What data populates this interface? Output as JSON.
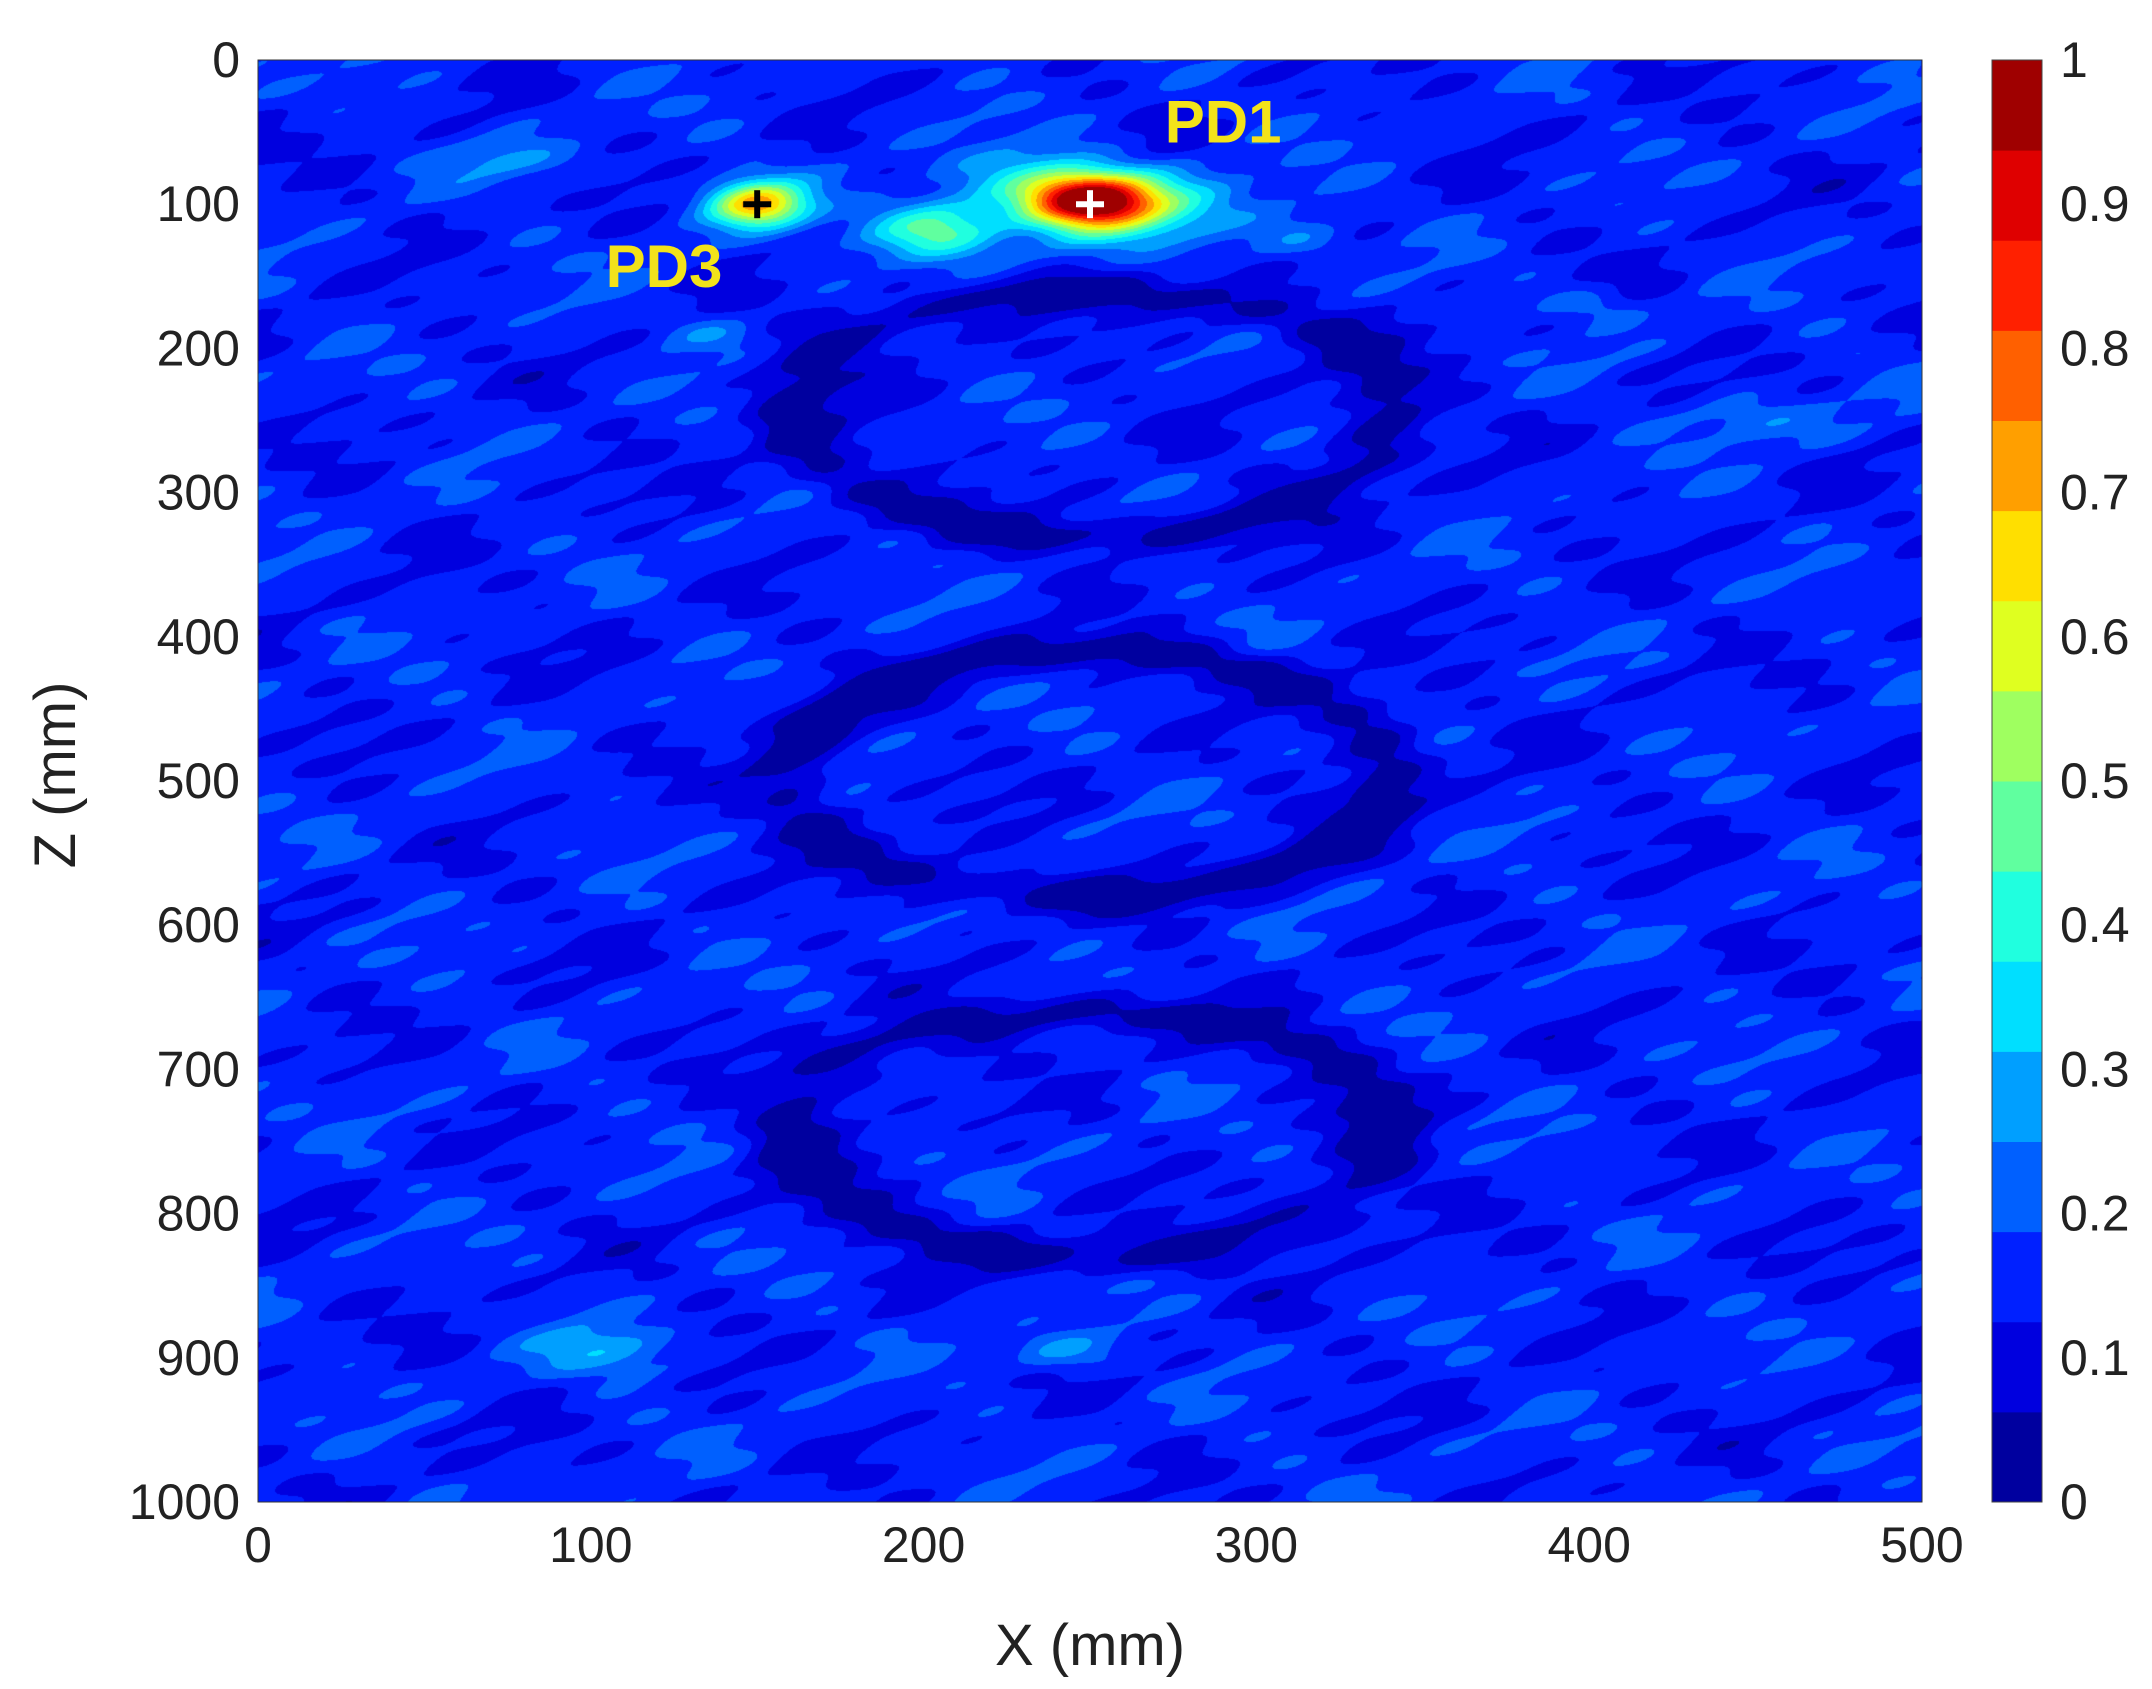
{
  "chart_data": {
    "type": "heatmap",
    "title": "",
    "xlabel": "X (mm)",
    "ylabel": "Z (mm)",
    "xlim": [
      0,
      500
    ],
    "zlim": [
      0,
      1000
    ],
    "z_axis_reversed": true,
    "x_ticks": [
      "0",
      "100",
      "200",
      "300",
      "400",
      "500"
    ],
    "z_ticks": [
      "0",
      "100",
      "200",
      "300",
      "400",
      "500",
      "600",
      "700",
      "800",
      "900",
      "1000"
    ],
    "x_tick_values": [
      0,
      100,
      200,
      300,
      400,
      500
    ],
    "z_tick_values": [
      0,
      100,
      200,
      300,
      400,
      500,
      600,
      700,
      800,
      900,
      1000
    ],
    "background_level": 0.15,
    "colorbar": {
      "range": [
        0,
        1
      ],
      "ticks": [
        "0",
        "0.1",
        "0.2",
        "0.3",
        "0.4",
        "0.5",
        "0.6",
        "0.7",
        "0.8",
        "0.9",
        "1"
      ],
      "tick_values": [
        0,
        0.1,
        0.2,
        0.3,
        0.4,
        0.5,
        0.6,
        0.7,
        0.8,
        0.9,
        1
      ],
      "levels": 16,
      "colormap": "jet"
    },
    "hotspots": [
      {
        "x": 250,
        "z": 97,
        "sx": 14,
        "sz": 13,
        "amp": 0.85
      },
      {
        "x": 150,
        "z": 100,
        "sx": 10,
        "sz": 11,
        "amp": 0.55
      },
      {
        "x": 205,
        "z": 118,
        "sx": 14,
        "sz": 14,
        "amp": 0.35
      },
      {
        "x": 272,
        "z": 105,
        "sx": 22,
        "sz": 18,
        "amp": 0.18
      },
      {
        "x": 230,
        "z": 80,
        "sx": 20,
        "sz": 16,
        "amp": 0.12
      },
      {
        "x": 80,
        "z": 70,
        "sx": 14,
        "sz": 10,
        "amp": 0.1
      },
      {
        "x": 105,
        "z": 895,
        "sx": 14,
        "sz": 12,
        "amp": 0.14
      },
      {
        "x": 240,
        "z": 895,
        "sx": 12,
        "sz": 10,
        "amp": 0.12
      },
      {
        "x": 450,
        "z": 250,
        "sx": 14,
        "sz": 12,
        "amp": 0.1
      },
      {
        "x": 135,
        "z": 190,
        "sx": 10,
        "sz": 8,
        "amp": 0.08
      },
      {
        "x": 315,
        "z": 125,
        "sx": 10,
        "sz": 10,
        "amp": 0.1
      },
      {
        "x": 400,
        "z": 170,
        "sx": 10,
        "sz": 8,
        "amp": 0.08
      }
    ],
    "rings": [
      {
        "x": 250,
        "z": 245,
        "rx": 90,
        "rz": 85,
        "width": 9,
        "depth": 0.13
      },
      {
        "x": 250,
        "z": 495,
        "rx": 90,
        "rz": 85,
        "width": 9,
        "depth": 0.13
      },
      {
        "x": 250,
        "z": 745,
        "rx": 90,
        "rz": 85,
        "width": 9,
        "depth": 0.13
      }
    ],
    "markers": [
      {
        "x": 250,
        "z": 100,
        "symbol": "+",
        "color": "#ffffff"
      },
      {
        "x": 150,
        "z": 100,
        "symbol": "+",
        "color": "#000000"
      }
    ],
    "annotations": [
      {
        "text": "PD1",
        "x": 290,
        "z": 42
      },
      {
        "text": "PD3",
        "x": 122,
        "z": 142
      }
    ]
  }
}
